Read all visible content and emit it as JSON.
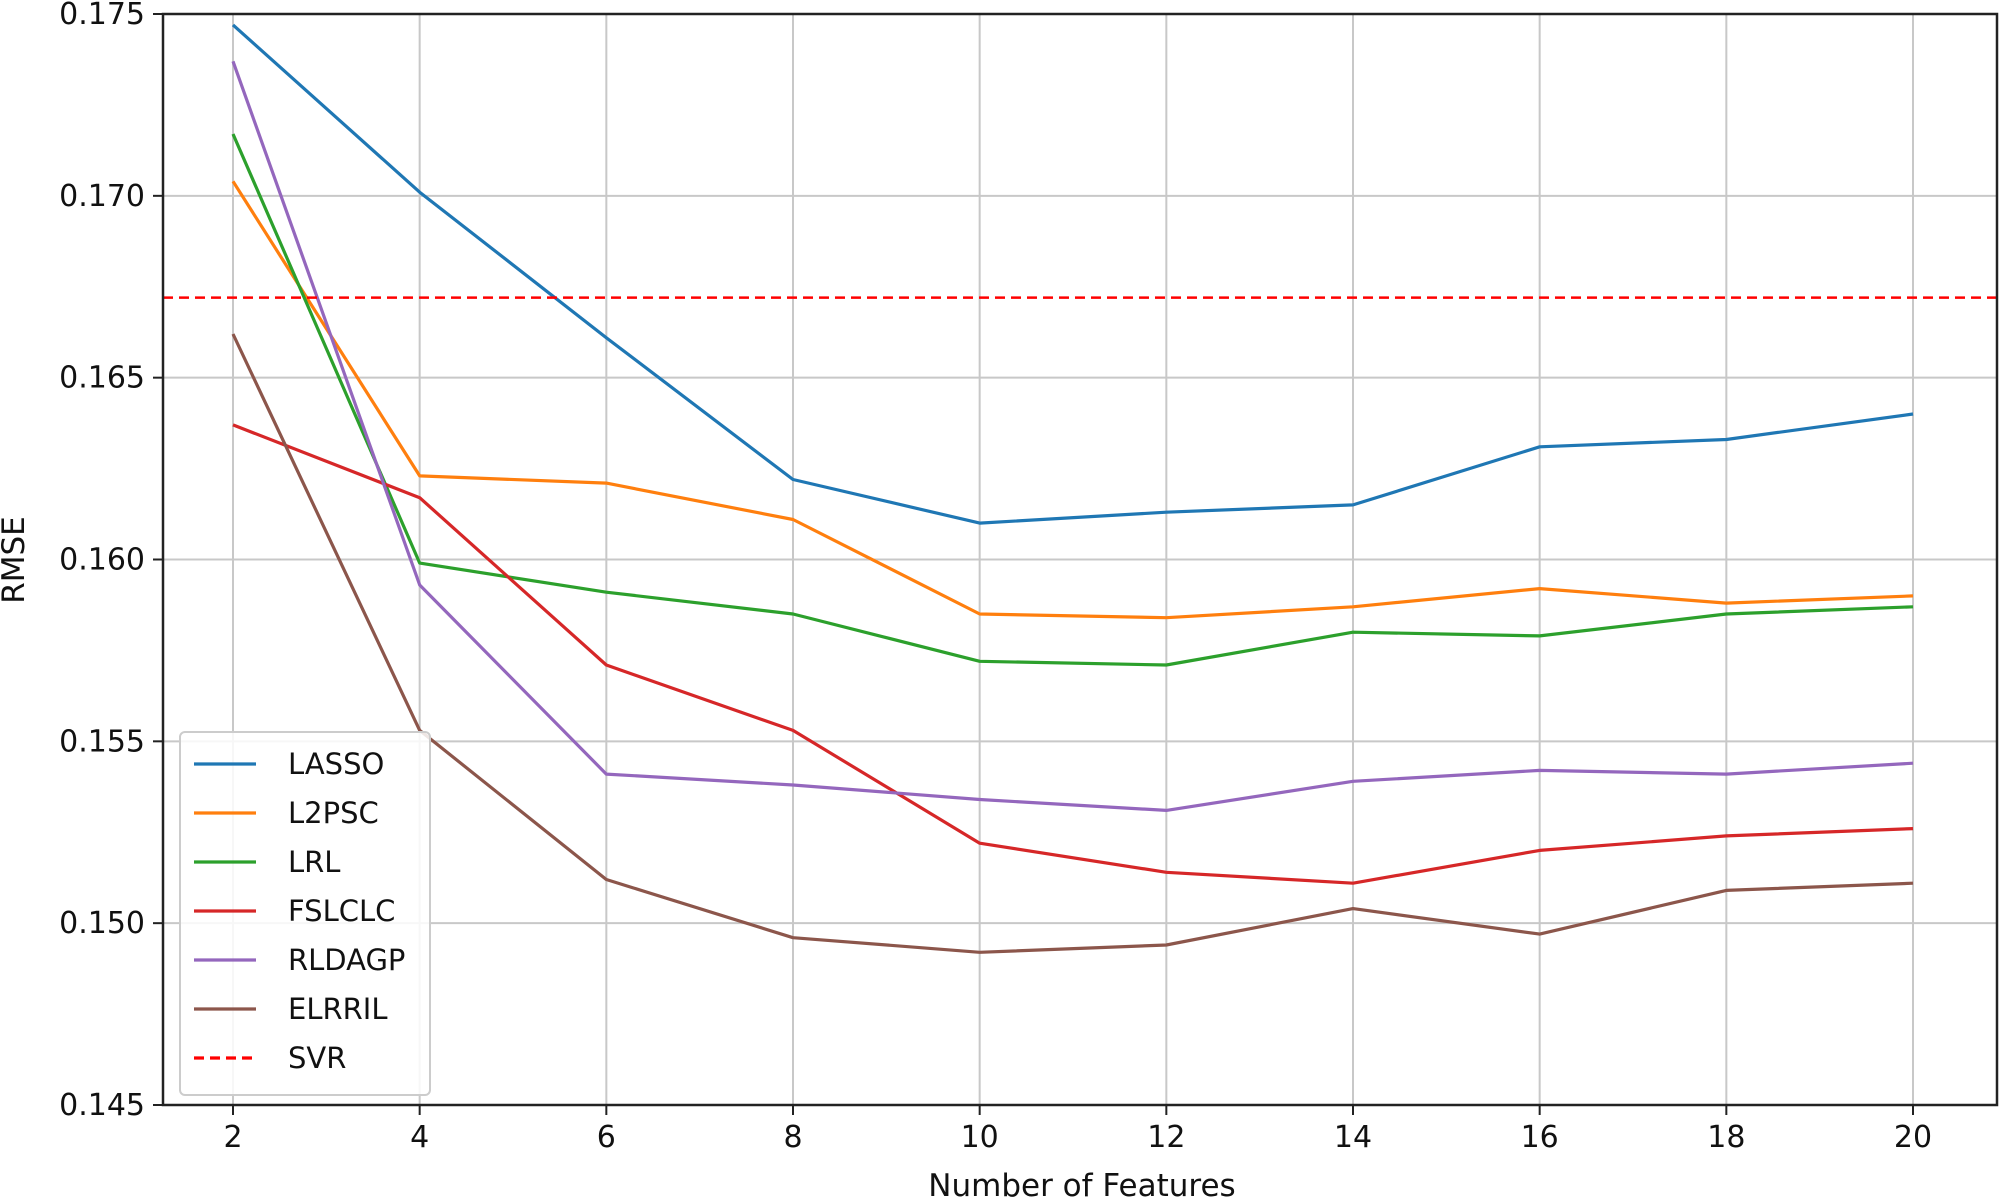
{
  "chart_data": {
    "type": "line",
    "title": "",
    "xlabel": "Number of Features",
    "ylabel": "RMSE",
    "x": [
      2,
      4,
      6,
      8,
      10,
      12,
      14,
      16,
      18,
      20
    ],
    "xticks": [
      "2",
      "4",
      "6",
      "8",
      "10",
      "12",
      "14",
      "16",
      "18",
      "20"
    ],
    "xlim": [
      1.25,
      20.9
    ],
    "yticks": [
      "0.145",
      "0.150",
      "0.155",
      "0.160",
      "0.165",
      "0.170",
      "0.175"
    ],
    "ytick_values": [
      0.145,
      0.15,
      0.155,
      0.16,
      0.165,
      0.17,
      0.175
    ],
    "ylim": [
      0.145,
      0.175
    ],
    "grid": true,
    "legend_position": "lower-left",
    "series": [
      {
        "name": "LASSO",
        "color": "#1f77b4",
        "style": "solid",
        "values": [
          0.1747,
          0.1701,
          0.1661,
          0.1622,
          0.161,
          0.1613,
          0.1615,
          0.1631,
          0.1633,
          0.164
        ]
      },
      {
        "name": "L2PSC",
        "color": "#ff7f0e",
        "style": "solid",
        "values": [
          0.1704,
          0.1623,
          0.1621,
          0.1611,
          0.1585,
          0.1584,
          0.1587,
          0.1592,
          0.1588,
          0.159
        ]
      },
      {
        "name": "LRL",
        "color": "#2ca02c",
        "style": "solid",
        "values": [
          0.1717,
          0.1599,
          0.1591,
          0.1585,
          0.1572,
          0.1571,
          0.158,
          0.1579,
          0.1585,
          0.1587
        ]
      },
      {
        "name": "FSLCLC",
        "color": "#d62728",
        "style": "solid",
        "values": [
          0.1637,
          0.1617,
          0.1571,
          0.1553,
          0.1522,
          0.1514,
          0.1511,
          0.152,
          0.1524,
          0.1526
        ]
      },
      {
        "name": "RLDAGP",
        "color": "#9467bd",
        "style": "solid",
        "values": [
          0.1737,
          0.1593,
          0.1541,
          0.1538,
          0.1534,
          0.1531,
          0.1539,
          0.1542,
          0.1541,
          0.1544
        ]
      },
      {
        "name": "ELRRIL",
        "color": "#8c564b",
        "style": "solid",
        "values": [
          0.1662,
          0.1553,
          0.1512,
          0.1496,
          0.1492,
          0.1494,
          0.1504,
          0.1497,
          0.1509,
          0.1511
        ]
      },
      {
        "name": "SVR",
        "color": "#ff0000",
        "style": "dashed",
        "constant": 0.1672
      }
    ]
  }
}
